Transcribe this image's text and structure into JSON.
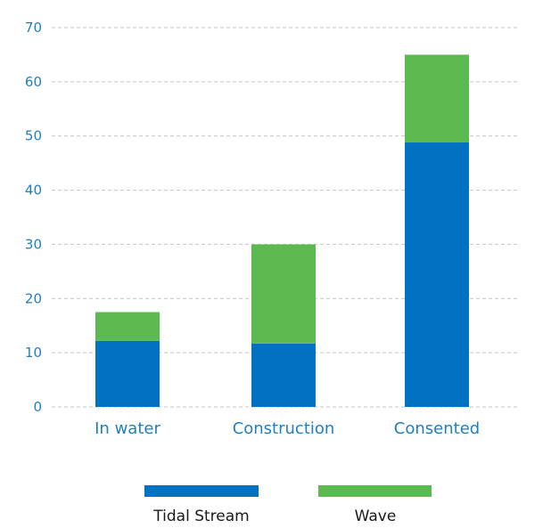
{
  "chart_data": {
    "type": "bar",
    "stacked": true,
    "categories": [
      "In water",
      "Construction",
      "Consented"
    ],
    "series": [
      {
        "name": "Tidal Stream",
        "values": [
          12.2,
          11.7,
          48.8
        ],
        "color": "#0072c1"
      },
      {
        "name": "Wave",
        "values": [
          5.3,
          18.3,
          16.2
        ],
        "color": "#5dba50"
      }
    ],
    "yticks": [
      0,
      10,
      20,
      30,
      40,
      50,
      60,
      70
    ],
    "ylim": [
      0,
      70
    ],
    "grid": true,
    "legend_position": "bottom",
    "axis_label_color": "#1f7fbf",
    "grid_color": "#c4c4c4"
  }
}
